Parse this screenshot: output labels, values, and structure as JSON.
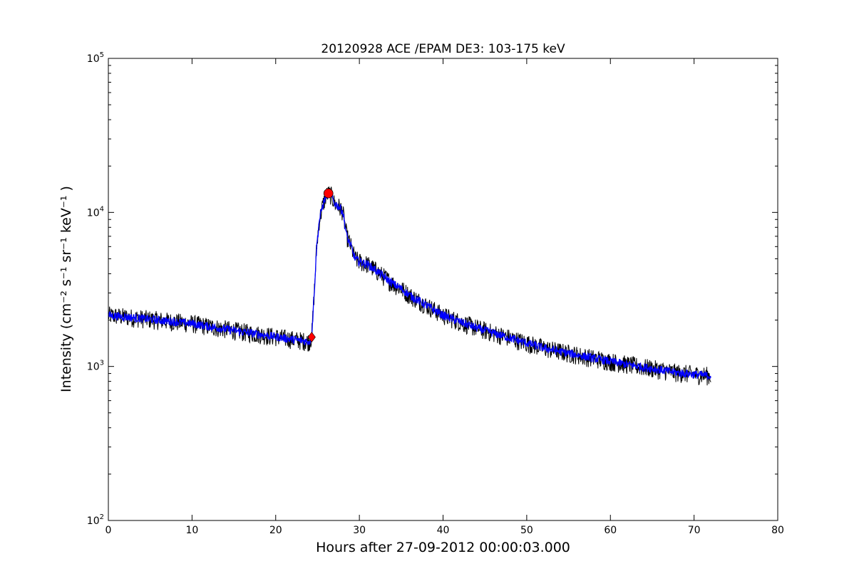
{
  "chart_data": {
    "type": "line",
    "title": "20120928 ACE /EPAM DE3: 103-175 keV",
    "xlabel": "Hours after 27-09-2012 00:00:03.000",
    "ylabel": "Intensity (cm⁻² s⁻¹ sr⁻¹ keV⁻¹ )",
    "yscale": "log",
    "xlim": [
      0,
      80
    ],
    "ylim": [
      100,
      100000
    ],
    "grid": false,
    "x_ticks": [
      {
        "value": 0,
        "label": "0"
      },
      {
        "value": 10,
        "label": "10"
      },
      {
        "value": 20,
        "label": "20"
      },
      {
        "value": 30,
        "label": "30"
      },
      {
        "value": 40,
        "label": "40"
      },
      {
        "value": 50,
        "label": "50"
      },
      {
        "value": 60,
        "label": "60"
      },
      {
        "value": 70,
        "label": "70"
      },
      {
        "value": 80,
        "label": "80"
      }
    ],
    "y_ticks": [
      {
        "value": 100,
        "base": "10",
        "exp": "2"
      },
      {
        "value": 1000,
        "base": "10",
        "exp": "3"
      },
      {
        "value": 10000,
        "base": "10",
        "exp": "4"
      },
      {
        "value": 100000,
        "base": "10",
        "exp": "5"
      }
    ],
    "series": [
      {
        "color": "#0000ff",
        "points": [
          [
            0,
            2150
          ],
          [
            2,
            2100
          ],
          [
            4,
            2050
          ],
          [
            6,
            2000
          ],
          [
            8,
            1950
          ],
          [
            10,
            1900
          ],
          [
            12,
            1820
          ],
          [
            14,
            1750
          ],
          [
            16,
            1680
          ],
          [
            18,
            1620
          ],
          [
            20,
            1560
          ],
          [
            22,
            1500
          ],
          [
            24,
            1450
          ],
          [
            24.3,
            1550
          ],
          [
            24.6,
            3000
          ],
          [
            24.9,
            6000
          ],
          [
            25.2,
            8800
          ],
          [
            25.6,
            11000
          ],
          [
            26.0,
            12800
          ],
          [
            26.3,
            13300
          ],
          [
            26.7,
            12800
          ],
          [
            27.0,
            11500
          ],
          [
            27.5,
            11000
          ],
          [
            28.0,
            10200
          ],
          [
            28.5,
            7000
          ],
          [
            29.0,
            6000
          ],
          [
            29.5,
            5000
          ],
          [
            30,
            4800
          ],
          [
            31,
            4600
          ],
          [
            32,
            4200
          ],
          [
            33,
            3800
          ],
          [
            34,
            3450
          ],
          [
            35,
            3200
          ],
          [
            36,
            2900
          ],
          [
            38,
            2500
          ],
          [
            40,
            2150
          ],
          [
            42,
            1950
          ],
          [
            44,
            1780
          ],
          [
            46,
            1650
          ],
          [
            48,
            1530
          ],
          [
            50,
            1420
          ],
          [
            52,
            1320
          ],
          [
            54,
            1250
          ],
          [
            56,
            1190
          ],
          [
            58,
            1130
          ],
          [
            60,
            1080
          ],
          [
            62,
            1030
          ],
          [
            64,
            990
          ],
          [
            66,
            950
          ],
          [
            68,
            910
          ],
          [
            70,
            890
          ],
          [
            72,
            870
          ]
        ]
      }
    ],
    "noise_band": {
      "color": "#000000",
      "relative_spread": 0.14
    },
    "markers": [
      {
        "shape": "diamond",
        "color": "#ff0000",
        "x": 24.3,
        "y": 1550
      },
      {
        "shape": "circle",
        "color": "#ff0000",
        "x": 26.3,
        "y": 13300
      }
    ]
  }
}
